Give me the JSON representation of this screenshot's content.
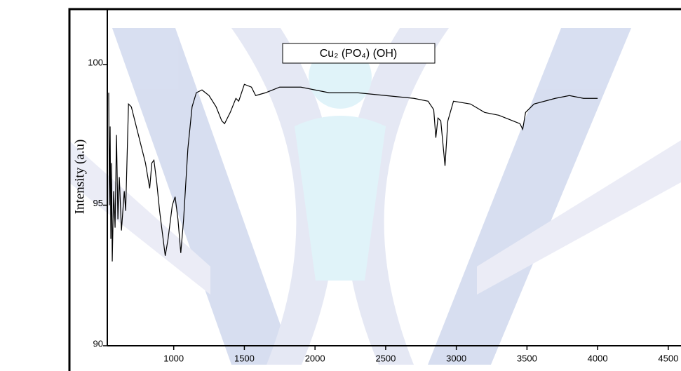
{
  "chart_data": {
    "type": "line",
    "title": "Cu₂ (PO₄) (OH)",
    "y_label": "Intensity (a.u)",
    "x": [
      540,
      545,
      550,
      555,
      560,
      565,
      575,
      585,
      595,
      605,
      615,
      630,
      650,
      660,
      680,
      700,
      750,
      800,
      830,
      845,
      860,
      880,
      900,
      940,
      960,
      990,
      1010,
      1030,
      1050,
      1070,
      1100,
      1130,
      1160,
      1200,
      1250,
      1300,
      1340,
      1360,
      1400,
      1440,
      1460,
      1500,
      1550,
      1580,
      1650,
      1750,
      1800,
      1900,
      2000,
      2100,
      2200,
      2300,
      2500,
      2700,
      2800,
      2840,
      2855,
      2870,
      2890,
      2920,
      2940,
      2980,
      3100,
      3200,
      3300,
      3400,
      3450,
      3470,
      3490,
      3550,
      3700,
      3800,
      3900,
      4000
    ],
    "series": [
      {
        "color": "#000000",
        "values": [
          99.0,
          95.0,
          97.8,
          93.8,
          96.5,
          93.0,
          95.5,
          94.2,
          97.5,
          94.5,
          96.0,
          94.1,
          95.5,
          94.8,
          98.6,
          98.5,
          97.5,
          96.5,
          95.6,
          96.5,
          96.6,
          95.8,
          94.8,
          93.2,
          93.8,
          95.0,
          95.3,
          94.5,
          93.3,
          94.5,
          97.0,
          98.5,
          99.0,
          99.1,
          98.9,
          98.5,
          98.0,
          97.9,
          98.3,
          98.8,
          98.7,
          99.3,
          99.2,
          98.9,
          99.0,
          99.2,
          99.2,
          99.2,
          99.1,
          99.0,
          99.0,
          99.0,
          98.9,
          98.8,
          98.7,
          98.4,
          97.4,
          98.1,
          98.0,
          96.4,
          98.0,
          98.7,
          98.6,
          98.3,
          98.2,
          98.0,
          97.9,
          97.7,
          98.3,
          98.6,
          98.8,
          98.9,
          98.8,
          98.8
        ]
      }
    ],
    "xlim": [
      530,
      4600
    ],
    "ylim": [
      90,
      102
    ],
    "xticks": [
      1000,
      1500,
      2000,
      2500,
      3000,
      3500,
      4000,
      4500
    ],
    "yticks": [
      90,
      95,
      100
    ]
  }
}
